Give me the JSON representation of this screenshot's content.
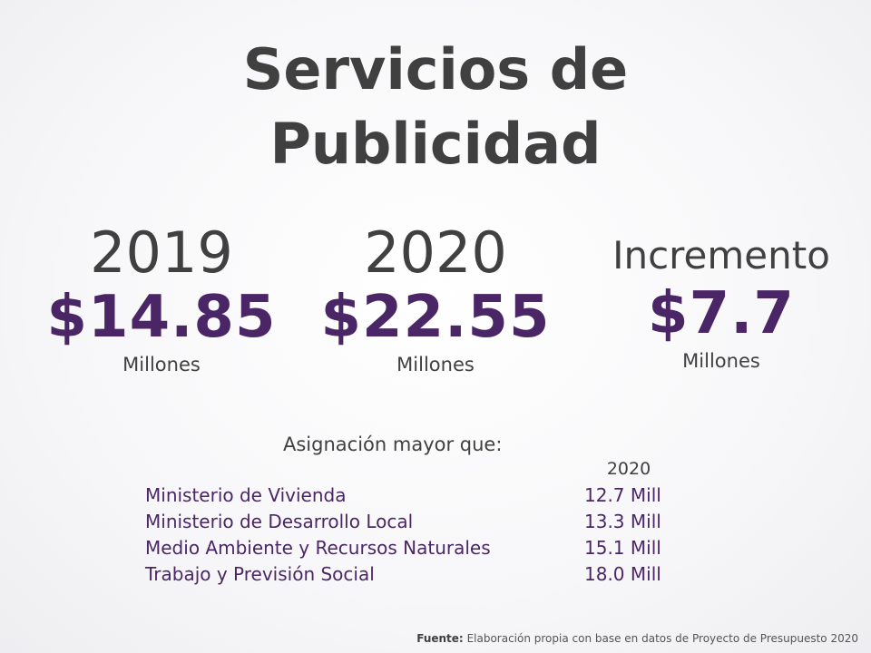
{
  "title": {
    "line1": "Servicios de",
    "line2": "Publicidad"
  },
  "stats": {
    "y2019": {
      "label": "2019",
      "amount": "$14.85",
      "unit": "Millones"
    },
    "y2020": {
      "label": "2020",
      "amount": "$22.55",
      "unit": "Millones"
    },
    "increase": {
      "label": "Incremento",
      "amount": "$7.7",
      "unit": "Millones"
    }
  },
  "comparison": {
    "heading": "Asignación mayor que:",
    "column_header": "2020",
    "rows": [
      {
        "name": "Ministerio de Vivienda",
        "value": "12.7 Mill"
      },
      {
        "name": "Ministerio de Desarrollo Local",
        "value": "13.3 Mill"
      },
      {
        "name": "Medio Ambiente y Recursos Naturales",
        "value": "15.1 Mill"
      },
      {
        "name": "Trabajo y Previsión Social",
        "value": "18.0 Mill"
      }
    ]
  },
  "source": {
    "label": "Fuente:",
    "text": "Elaboración propia con base en datos de Proyecto de Presupuesto 2020"
  },
  "colors": {
    "accent": "#4b2667",
    "text": "#404040"
  }
}
